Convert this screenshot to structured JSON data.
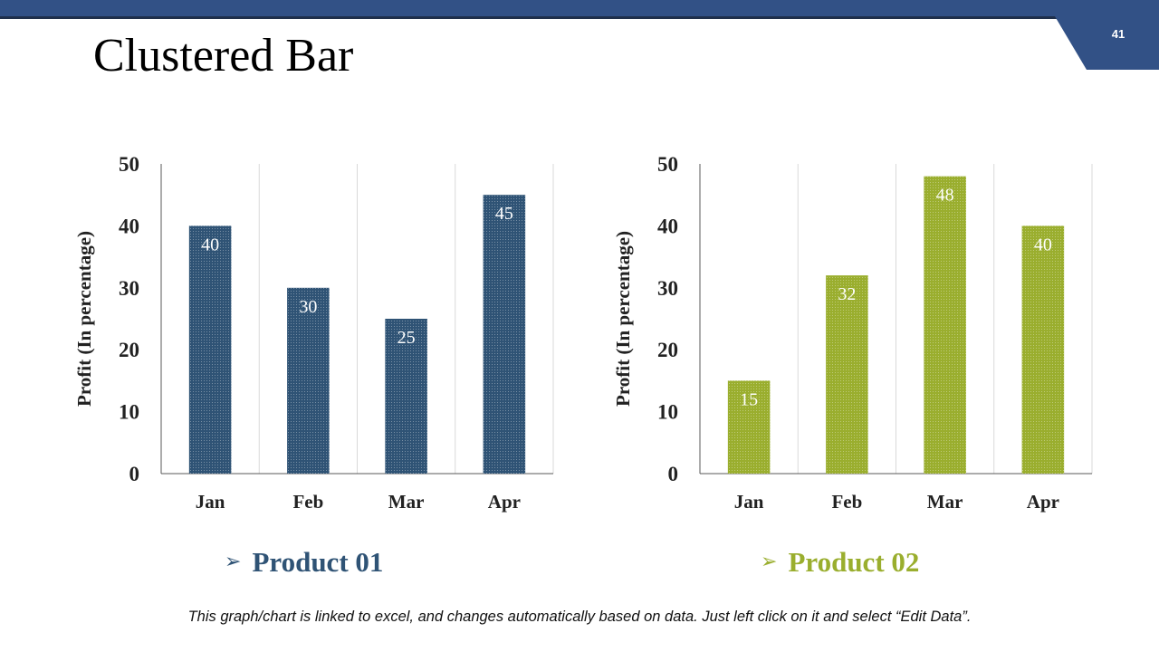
{
  "slide": {
    "title": "Clustered Bar",
    "number": "41",
    "accent_color": "#325186",
    "footer_note": "This graph/chart is linked to excel, and changes automatically based on data. Just left click on it and select “Edit Data”."
  },
  "legend": [
    {
      "label": "Product 01",
      "icon": "arrow-right-icon",
      "color": "#2f5375"
    },
    {
      "label": "Product 02",
      "icon": "arrow-right-icon",
      "color": "#9aae2e"
    }
  ],
  "chart_data": [
    {
      "type": "bar",
      "title": "",
      "series_name": "Product 01",
      "categories": [
        "Jan",
        "Feb",
        "Mar",
        "Apr"
      ],
      "values": [
        40,
        30,
        25,
        45
      ],
      "xlabel": "",
      "ylabel": "Profit  (In percentage)",
      "ylim": [
        0,
        50
      ],
      "yticks": [
        0,
        10,
        20,
        30,
        40,
        50
      ],
      "color": "#2f5375",
      "grid": "vertical"
    },
    {
      "type": "bar",
      "title": "",
      "series_name": "Product 02",
      "categories": [
        "Jan",
        "Feb",
        "Mar",
        "Apr"
      ],
      "values": [
        15,
        32,
        48,
        40
      ],
      "xlabel": "",
      "ylabel": "Profit  (In percentage)",
      "ylim": [
        0,
        50
      ],
      "yticks": [
        0,
        10,
        20,
        30,
        40,
        50
      ],
      "color": "#9aae2e",
      "grid": "vertical"
    }
  ]
}
